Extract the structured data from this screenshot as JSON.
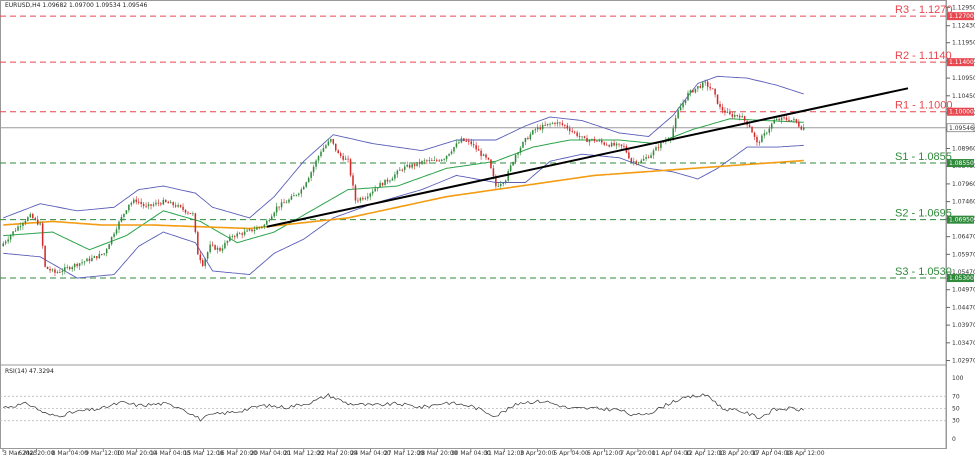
{
  "window": {
    "title": "EURUSD,H4  1.09682 1.09700 1.09534 1.09546"
  },
  "colors": {
    "resistance": "#e8474f",
    "support": "#2f8a3b",
    "bull_candle": "#2f8a3b",
    "bear_candle": "#d12a2a",
    "bollinger": "#5a5fb8",
    "ma_fast": "#2aa44a",
    "ma_slow": "#f39c12",
    "trendline": "#000000",
    "rsi": "#333333"
  },
  "chart_data": [
    {
      "type": "candlestick",
      "symbol": "EURUSD",
      "timeframe": "H4",
      "ohlc_header": "1.09682 1.09700 1.09534 1.09546",
      "current_price": 1.09546,
      "current_price_label": "1.09546",
      "ylim": [
        1.029,
        1.131
      ],
      "y_ticks": [
        "1.12950",
        "1.12430",
        "1.11950",
        "1.11440",
        "1.10950",
        "1.10450",
        "1.09960",
        "1.09490",
        "1.08960",
        "1.08460",
        "1.07960",
        "1.07460",
        "1.06970",
        "1.06470",
        "1.05970",
        "1.05470",
        "1.04970",
        "1.04470",
        "1.03970",
        "1.03470",
        "1.02970"
      ],
      "x_labels": [
        "3 Mar 2023",
        "6 Mar 20:00",
        "8 Mar 04:00",
        "9 Mar 12:00",
        "10 Mar 20:00",
        "14 Mar 04:00",
        "15 Mar 12:00",
        "16 Mar 20:00",
        "20 Mar 04:00",
        "21 Mar 12:00",
        "22 Mar 20:00",
        "24 Mar 04:00",
        "27 Mar 12:00",
        "28 Mar 20:00",
        "30 Mar 04:00",
        "31 Mar 12:00",
        "3 Apr 20:00",
        "5 Apr 04:00",
        "6 Apr 12:00",
        "7 Apr 20:00",
        "11 Apr 04:00",
        "12 Apr 12:00",
        "13 Apr 20:00",
        "17 Apr 04:00",
        "18 Apr 12:00"
      ],
      "levels": [
        {
          "name": "R3 - 1.1270",
          "value": 1.127,
          "tag": "1.12700",
          "kind": "resistance"
        },
        {
          "name": "R2 - 1.1140",
          "value": 1.114,
          "tag": "1.11400",
          "kind": "resistance"
        },
        {
          "name": "R1 - 1.1000",
          "value": 1.1,
          "tag": "1.10000",
          "kind": "resistance"
        },
        {
          "name": "S1 - 1.0855",
          "value": 1.0855,
          "tag": "1.08550",
          "kind": "support"
        },
        {
          "name": "S2 - 1.0695",
          "value": 1.0695,
          "tag": "1.06950",
          "kind": "support"
        },
        {
          "name": "S3 - 1.0530",
          "value": 1.053,
          "tag": "1.05300",
          "kind": "support"
        }
      ],
      "trendline": {
        "start": [
          107,
          1.0675
        ],
        "end": [
          290,
          1.095
        ]
      },
      "anchors": [
        [
          0,
          1.062
        ],
        [
          5,
          1.066
        ],
        [
          9,
          1.069
        ],
        [
          12,
          1.0705
        ],
        [
          16,
          1.068
        ],
        [
          18,
          1.056
        ],
        [
          22,
          1.0545
        ],
        [
          26,
          1.0555
        ],
        [
          31,
          1.057
        ],
        [
          37,
          1.0585
        ],
        [
          42,
          1.06
        ],
        [
          46,
          1.066
        ],
        [
          49,
          1.07
        ],
        [
          52,
          1.074
        ],
        [
          55,
          1.075
        ],
        [
          59,
          1.073
        ],
        [
          63,
          1.074
        ],
        [
          66,
          1.0745
        ],
        [
          71,
          1.0735
        ],
        [
          75,
          1.072
        ],
        [
          78,
          1.071
        ],
        [
          80,
          1.06
        ],
        [
          82,
          1.057
        ],
        [
          85,
          1.062
        ],
        [
          89,
          1.061
        ],
        [
          94,
          1.065
        ],
        [
          100,
          1.066
        ],
        [
          107,
          1.068
        ],
        [
          112,
          1.073
        ],
        [
          117,
          1.075
        ],
        [
          122,
          1.078
        ],
        [
          126,
          1.083
        ],
        [
          130,
          1.089
        ],
        [
          134,
          1.092
        ],
        [
          137,
          1.088
        ],
        [
          141,
          1.086
        ],
        [
          144,
          1.075
        ],
        [
          148,
          1.076
        ],
        [
          153,
          1.079
        ],
        [
          158,
          1.081
        ],
        [
          163,
          1.084
        ],
        [
          168,
          1.085
        ],
        [
          172,
          1.086
        ],
        [
          176,
          1.086
        ],
        [
          180,
          1.087
        ],
        [
          184,
          1.09
        ],
        [
          187,
          1.092
        ],
        [
          191,
          1.091
        ],
        [
          195,
          1.088
        ],
        [
          198,
          1.086
        ],
        [
          201,
          1.079
        ],
        [
          205,
          1.081
        ],
        [
          209,
          1.088
        ],
        [
          213,
          1.092
        ],
        [
          217,
          1.095
        ],
        [
          221,
          1.096
        ],
        [
          225,
          1.097
        ],
        [
          229,
          1.096
        ],
        [
          233,
          1.094
        ],
        [
          237,
          1.092
        ],
        [
          241,
          1.092
        ],
        [
          245,
          1.091
        ],
        [
          249,
          1.0905
        ],
        [
          253,
          1.09
        ],
        [
          256,
          1.086
        ],
        [
          260,
          1.086
        ],
        [
          264,
          1.088
        ],
        [
          268,
          1.091
        ],
        [
          272,
          1.093
        ],
        [
          275,
          1.1
        ],
        [
          279,
          1.105
        ],
        [
          283,
          1.107
        ],
        [
          286,
          1.108
        ],
        [
          289,
          1.106
        ],
        [
          292,
          1.101
        ],
        [
          296,
          1.099
        ],
        [
          300,
          1.099
        ],
        [
          304,
          1.096
        ],
        [
          307,
          1.091
        ],
        [
          310,
          1.0935
        ],
        [
          314,
          1.0975
        ],
        [
          318,
          1.098
        ],
        [
          322,
          1.0975
        ],
        [
          325,
          1.0955
        ]
      ],
      "bollinger": {
        "upper": [
          [
            0,
            1.07
          ],
          [
            15,
            1.074
          ],
          [
            30,
            1.072
          ],
          [
            45,
            1.073
          ],
          [
            55,
            1.078
          ],
          [
            65,
            1.079
          ],
          [
            78,
            1.077
          ],
          [
            85,
            1.073
          ],
          [
            100,
            1.07
          ],
          [
            110,
            1.076
          ],
          [
            122,
            1.086
          ],
          [
            134,
            1.0935
          ],
          [
            150,
            1.091
          ],
          [
            170,
            1.089
          ],
          [
            184,
            1.092
          ],
          [
            200,
            1.092
          ],
          [
            212,
            1.096
          ],
          [
            222,
            1.0985
          ],
          [
            235,
            1.0975
          ],
          [
            250,
            1.094
          ],
          [
            262,
            1.093
          ],
          [
            272,
            1.099
          ],
          [
            282,
            1.108
          ],
          [
            290,
            1.11
          ],
          [
            302,
            1.1095
          ],
          [
            314,
            1.1075
          ],
          [
            325,
            1.105
          ]
        ],
        "lower": [
          [
            0,
            1.06
          ],
          [
            15,
            1.059
          ],
          [
            30,
            1.053
          ],
          [
            45,
            1.054
          ],
          [
            55,
            1.062
          ],
          [
            65,
            1.066
          ],
          [
            78,
            1.063
          ],
          [
            85,
            1.055
          ],
          [
            100,
            1.054
          ],
          [
            110,
            1.06
          ],
          [
            122,
            1.064
          ],
          [
            134,
            1.07
          ],
          [
            150,
            1.074
          ],
          [
            170,
            1.078
          ],
          [
            184,
            1.082
          ],
          [
            200,
            1.08
          ],
          [
            212,
            1.08
          ],
          [
            222,
            1.086
          ],
          [
            235,
            1.088
          ],
          [
            250,
            1.087
          ],
          [
            262,
            1.084
          ],
          [
            272,
            1.083
          ],
          [
            282,
            1.081
          ],
          [
            290,
            1.084
          ],
          [
            302,
            1.09
          ],
          [
            314,
            1.09
          ],
          [
            325,
            1.0905
          ]
        ]
      },
      "ma_fast": [
        [
          0,
          1.065
        ],
        [
          20,
          1.066
        ],
        [
          35,
          1.061
        ],
        [
          50,
          1.065
        ],
        [
          65,
          1.072
        ],
        [
          80,
          1.069
        ],
        [
          95,
          1.063
        ],
        [
          110,
          1.066
        ],
        [
          125,
          1.072
        ],
        [
          140,
          1.078
        ],
        [
          160,
          1.079
        ],
        [
          180,
          1.084
        ],
        [
          200,
          1.086
        ],
        [
          215,
          1.09
        ],
        [
          230,
          1.092
        ],
        [
          250,
          1.092
        ],
        [
          265,
          1.091
        ],
        [
          280,
          1.095
        ],
        [
          295,
          1.098
        ],
        [
          310,
          1.0975
        ],
        [
          325,
          1.097
        ]
      ],
      "ma_slow": [
        [
          0,
          1.068
        ],
        [
          20,
          1.069
        ],
        [
          40,
          1.068
        ],
        [
          60,
          1.068
        ],
        [
          80,
          1.0675
        ],
        [
          100,
          1.067
        ],
        [
          120,
          1.0685
        ],
        [
          140,
          1.07
        ],
        [
          160,
          1.073
        ],
        [
          180,
          1.076
        ],
        [
          200,
          1.078
        ],
        [
          220,
          1.08
        ],
        [
          240,
          1.082
        ],
        [
          260,
          1.083
        ],
        [
          280,
          1.084
        ],
        [
          300,
          1.085
        ],
        [
          325,
          1.0862
        ]
      ]
    },
    {
      "type": "line",
      "name": "RSI(14) 47.3294",
      "label": "RSI(14) 47.3294",
      "ylim": [
        0,
        100
      ],
      "y_ticks": [
        100,
        70,
        50,
        30,
        0
      ],
      "guides": [
        70,
        50,
        30
      ],
      "anchors": [
        [
          0,
          52
        ],
        [
          10,
          58
        ],
        [
          18,
          40
        ],
        [
          22,
          38
        ],
        [
          30,
          45
        ],
        [
          40,
          50
        ],
        [
          48,
          60
        ],
        [
          55,
          55
        ],
        [
          65,
          58
        ],
        [
          72,
          52
        ],
        [
          80,
          32
        ],
        [
          85,
          40
        ],
        [
          95,
          45
        ],
        [
          105,
          55
        ],
        [
          115,
          52
        ],
        [
          125,
          60
        ],
        [
          132,
          72
        ],
        [
          140,
          58
        ],
        [
          150,
          55
        ],
        [
          160,
          58
        ],
        [
          170,
          52
        ],
        [
          180,
          60
        ],
        [
          190,
          54
        ],
        [
          200,
          38
        ],
        [
          210,
          60
        ],
        [
          220,
          62
        ],
        [
          230,
          50
        ],
        [
          240,
          50
        ],
        [
          250,
          48
        ],
        [
          256,
          38
        ],
        [
          264,
          45
        ],
        [
          272,
          62
        ],
        [
          280,
          70
        ],
        [
          286,
          72
        ],
        [
          292,
          50
        ],
        [
          300,
          45
        ],
        [
          307,
          35
        ],
        [
          313,
          48
        ],
        [
          320,
          50
        ],
        [
          325,
          47
        ]
      ]
    }
  ]
}
